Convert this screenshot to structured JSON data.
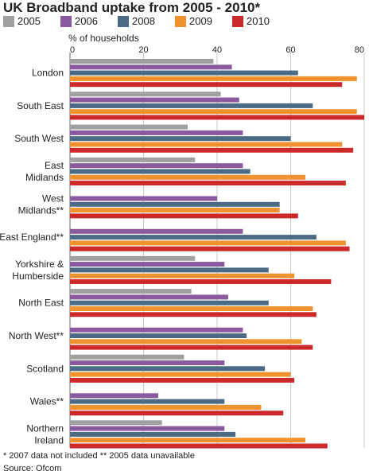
{
  "title": "UK Broadband uptake from 2005 - 2010*",
  "footnote": "* 2007 data not included   ** 2005 data unavailable",
  "source": "Source: Ofcom",
  "chart_data": {
    "type": "bar",
    "orientation": "horizontal",
    "title": "UK Broadband uptake from 2005 - 2010*",
    "xlabel": "% of households",
    "ylabel": "",
    "xlim": [
      0,
      80
    ],
    "xticks": [
      0,
      20,
      40,
      60,
      80
    ],
    "grid": true,
    "legend_position": "top",
    "categories": [
      [
        "London"
      ],
      [
        "South East"
      ],
      [
        "South West"
      ],
      [
        "East",
        "Midlands"
      ],
      [
        "West",
        "Midlands**"
      ],
      [
        "East England**"
      ],
      [
        "Yorkshire &",
        "Humberside"
      ],
      [
        "North East"
      ],
      [
        "North West**"
      ],
      [
        "Scotland"
      ],
      [
        "Wales**"
      ],
      [
        "Northern",
        "Ireland"
      ]
    ],
    "series": [
      {
        "name": "2005",
        "color": "#a0a0a0",
        "values": [
          39,
          41,
          32,
          34,
          null,
          null,
          34,
          33,
          null,
          31,
          null,
          25
        ]
      },
      {
        "name": "2006",
        "color": "#8b5a9e",
        "values": [
          44,
          46,
          47,
          47,
          40,
          47,
          42,
          43,
          47,
          42,
          24,
          42
        ]
      },
      {
        "name": "2008",
        "color": "#4a6a85",
        "values": [
          62,
          66,
          60,
          49,
          57,
          67,
          54,
          54,
          48,
          53,
          42,
          45
        ]
      },
      {
        "name": "2009",
        "color": "#f0922e",
        "values": [
          78,
          78,
          74,
          64,
          57,
          75,
          61,
          66,
          63,
          60,
          52,
          64
        ]
      },
      {
        "name": "2010",
        "color": "#cc2a2a",
        "values": [
          74,
          80,
          77,
          75,
          62,
          76,
          71,
          67,
          66,
          61,
          58,
          70
        ]
      }
    ]
  }
}
